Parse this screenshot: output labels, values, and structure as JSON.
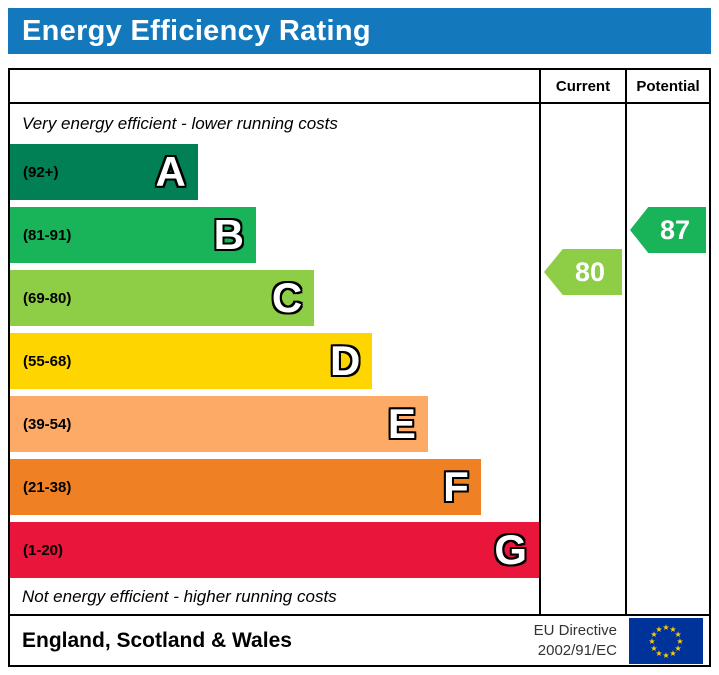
{
  "header": {
    "title": "Energy Efficiency Rating",
    "bg_color": "#1478bd",
    "text_color": "#ffffff"
  },
  "chart_data": {
    "type": "bar",
    "title": "Energy Efficiency Rating",
    "columns": {
      "current": "Current",
      "potential": "Potential"
    },
    "top_label": "Very energy efficient - lower running costs",
    "bottom_label": "Not energy efficient - higher running costs",
    "bands": [
      {
        "letter": "A",
        "range_label": "(92+)",
        "min": 92,
        "max": 100,
        "color": "#008054",
        "width_pct": 35.5
      },
      {
        "letter": "B",
        "range_label": "(81-91)",
        "min": 81,
        "max": 91,
        "color": "#19b459",
        "width_pct": 46.5
      },
      {
        "letter": "C",
        "range_label": "(69-80)",
        "min": 69,
        "max": 80,
        "color": "#8dce46",
        "width_pct": 57.5
      },
      {
        "letter": "D",
        "range_label": "(55-68)",
        "min": 55,
        "max": 68,
        "color": "#ffd500",
        "width_pct": 68.5
      },
      {
        "letter": "E",
        "range_label": "(39-54)",
        "min": 39,
        "max": 54,
        "color": "#fcaa65",
        "width_pct": 79
      },
      {
        "letter": "F",
        "range_label": "(21-38)",
        "min": 21,
        "max": 38,
        "color": "#ef8023",
        "width_pct": 89
      },
      {
        "letter": "G",
        "range_label": "(1-20)",
        "min": 1,
        "max": 20,
        "color": "#e9153b",
        "width_pct": 100
      }
    ],
    "current": {
      "value": 80,
      "band": "C",
      "color": "#8dce46"
    },
    "potential": {
      "value": 87,
      "band": "B",
      "color": "#19b459"
    }
  },
  "footer": {
    "region": "England, Scotland & Wales",
    "directive_line1": "EU Directive",
    "directive_line2": "2002/91/EC",
    "eu_flag": {
      "bg": "#003399",
      "star_color": "#ffcc00"
    }
  }
}
